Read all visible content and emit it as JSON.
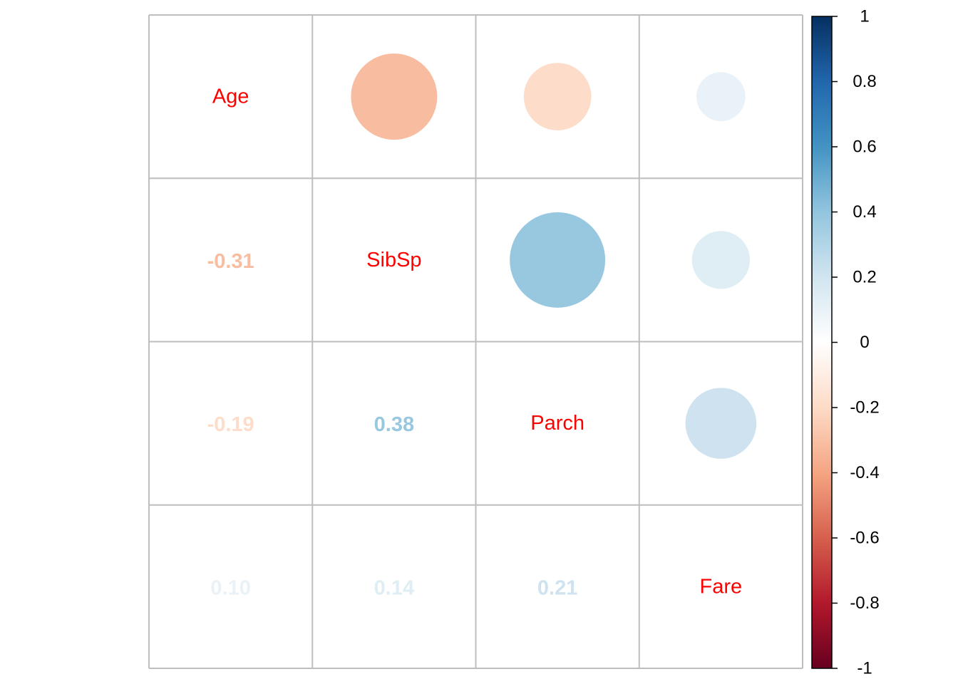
{
  "chart_data": {
    "type": "heatmap",
    "subtype": "correlation-matrix",
    "variables": [
      "Age",
      "SibSp",
      "Parch",
      "Fare"
    ],
    "matrix": [
      [
        1.0,
        -0.31,
        -0.19,
        0.1
      ],
      [
        -0.31,
        1.0,
        0.38,
        0.14
      ],
      [
        -0.19,
        0.38,
        1.0,
        0.21
      ],
      [
        0.1,
        0.14,
        0.21,
        1.0
      ]
    ],
    "upper_method": "circle",
    "lower_method": "number",
    "lower_labels": [
      {
        "row": 1,
        "col": 0,
        "text": "-0.31",
        "value": -0.31
      },
      {
        "row": 2,
        "col": 0,
        "text": "-0.19",
        "value": -0.19
      },
      {
        "row": 2,
        "col": 1,
        "text": "0.38",
        "value": 0.38
      },
      {
        "row": 3,
        "col": 0,
        "text": "0.10",
        "value": 0.1
      },
      {
        "row": 3,
        "col": 1,
        "text": "0.14",
        "value": 0.14
      },
      {
        "row": 3,
        "col": 2,
        "text": "0.21",
        "value": 0.21
      }
    ],
    "diagonal_label_color": "#FF0000",
    "grid": true,
    "grid_color": "#BEBEBE",
    "colorbar": {
      "position": "right",
      "range": [
        -1,
        1
      ],
      "ticks": [
        1,
        0.8,
        0.6,
        0.4,
        0.2,
        0,
        -0.2,
        -0.4,
        -0.6,
        -0.8,
        -1
      ],
      "tick_labels": [
        "1",
        "0.8",
        "0.6",
        "0.4",
        "0.2",
        "0",
        "-0.2",
        "-0.4",
        "-0.6",
        "-0.8",
        "-1"
      ],
      "colors": [
        "#67001F",
        "#B2182B",
        "#D6604D",
        "#F4A582",
        "#FDDBC7",
        "#FFFFFF",
        "#D1E5F0",
        "#92C5DE",
        "#4393C3",
        "#2166AC",
        "#053061"
      ]
    }
  }
}
